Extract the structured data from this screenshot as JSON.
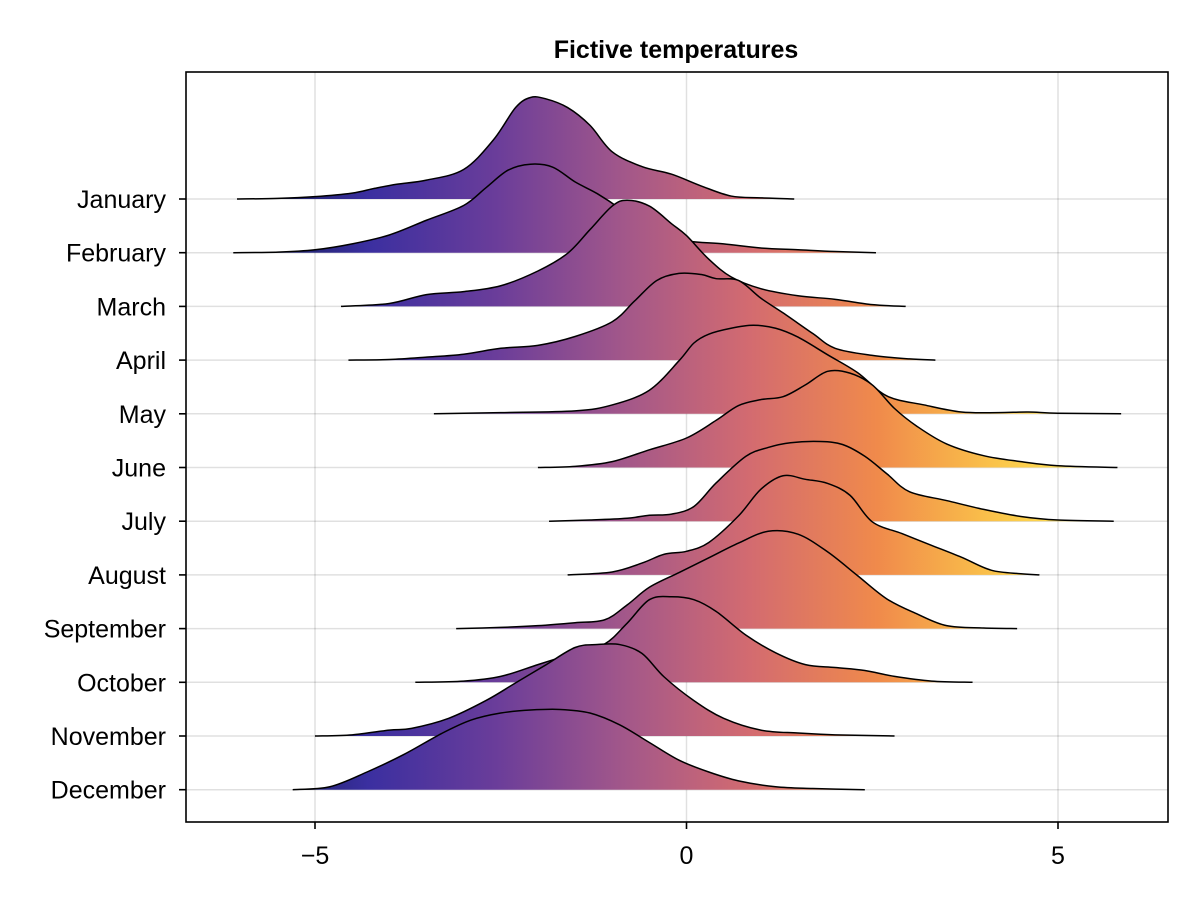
{
  "chart_data": {
    "type": "ridgeline",
    "title": "Fictive temperatures",
    "xlabel": "",
    "ylabel": "",
    "xlim": [
      -6.75,
      6.4
    ],
    "x_ticks": [
      -5,
      0,
      5
    ],
    "x_tick_labels": [
      "−5",
      "0",
      "5"
    ],
    "grid": true,
    "colormap": [
      "#0d1b4c",
      "#3b2fa0",
      "#6a3d9a",
      "#a2578a",
      "#d36b70",
      "#f08a4b",
      "#fbc84a",
      "#fff35a"
    ],
    "colormap_range": [
      -6.0,
      6.0
    ],
    "series": [
      {
        "name": "January",
        "points": [
          [
            -6.05,
            0.0
          ],
          [
            -5.5,
            0.01
          ],
          [
            -5.0,
            0.04
          ],
          [
            -4.5,
            0.1
          ],
          [
            -4.2,
            0.18
          ],
          [
            -3.9,
            0.25
          ],
          [
            -3.5,
            0.32
          ],
          [
            -3.0,
            0.5
          ],
          [
            -2.6,
            1.0
          ],
          [
            -2.3,
            1.55
          ],
          [
            -2.1,
            1.72
          ],
          [
            -1.9,
            1.7
          ],
          [
            -1.6,
            1.55
          ],
          [
            -1.3,
            1.25
          ],
          [
            -1.0,
            0.8
          ],
          [
            -0.6,
            0.55
          ],
          [
            -0.2,
            0.42
          ],
          [
            0.2,
            0.22
          ],
          [
            0.6,
            0.05
          ],
          [
            1.0,
            0.02
          ],
          [
            1.45,
            0.0
          ]
        ]
      },
      {
        "name": "February",
        "points": [
          [
            -6.1,
            0.0
          ],
          [
            -5.5,
            0.01
          ],
          [
            -5.0,
            0.05
          ],
          [
            -4.5,
            0.15
          ],
          [
            -4.0,
            0.3
          ],
          [
            -3.5,
            0.55
          ],
          [
            -3.0,
            0.8
          ],
          [
            -2.7,
            1.1
          ],
          [
            -2.4,
            1.4
          ],
          [
            -2.1,
            1.5
          ],
          [
            -1.8,
            1.45
          ],
          [
            -1.5,
            1.2
          ],
          [
            -1.2,
            1.0
          ],
          [
            -0.9,
            0.75
          ],
          [
            -0.5,
            0.35
          ],
          [
            0.0,
            0.2
          ],
          [
            0.5,
            0.15
          ],
          [
            1.0,
            0.08
          ],
          [
            1.5,
            0.05
          ],
          [
            2.0,
            0.02
          ],
          [
            2.55,
            0.0
          ]
        ]
      },
      {
        "name": "March",
        "points": [
          [
            -4.65,
            0.0
          ],
          [
            -4.0,
            0.05
          ],
          [
            -3.5,
            0.2
          ],
          [
            -3.0,
            0.25
          ],
          [
            -2.5,
            0.35
          ],
          [
            -2.0,
            0.6
          ],
          [
            -1.6,
            0.9
          ],
          [
            -1.3,
            1.3
          ],
          [
            -1.0,
            1.7
          ],
          [
            -0.8,
            1.8
          ],
          [
            -0.5,
            1.7
          ],
          [
            -0.2,
            1.4
          ],
          [
            0.0,
            1.2
          ],
          [
            0.3,
            0.8
          ],
          [
            0.6,
            0.5
          ],
          [
            1.0,
            0.3
          ],
          [
            1.5,
            0.18
          ],
          [
            2.0,
            0.12
          ],
          [
            2.5,
            0.03
          ],
          [
            2.95,
            0.0
          ]
        ]
      },
      {
        "name": "April",
        "points": [
          [
            -4.55,
            0.0
          ],
          [
            -4.0,
            0.01
          ],
          [
            -3.5,
            0.05
          ],
          [
            -3.0,
            0.1
          ],
          [
            -2.5,
            0.2
          ],
          [
            -2.0,
            0.25
          ],
          [
            -1.5,
            0.4
          ],
          [
            -1.0,
            0.65
          ],
          [
            -0.7,
            1.0
          ],
          [
            -0.4,
            1.35
          ],
          [
            -0.1,
            1.47
          ],
          [
            0.2,
            1.45
          ],
          [
            0.4,
            1.38
          ],
          [
            0.7,
            1.35
          ],
          [
            1.0,
            1.05
          ],
          [
            1.3,
            0.8
          ],
          [
            1.7,
            0.45
          ],
          [
            2.0,
            0.2
          ],
          [
            2.5,
            0.08
          ],
          [
            3.0,
            0.02
          ],
          [
            3.35,
            0.0
          ]
        ]
      },
      {
        "name": "May",
        "points": [
          [
            -3.4,
            0.0
          ],
          [
            -2.5,
            0.02
          ],
          [
            -1.5,
            0.05
          ],
          [
            -1.0,
            0.15
          ],
          [
            -0.5,
            0.4
          ],
          [
            -0.1,
            0.9
          ],
          [
            0.1,
            1.2
          ],
          [
            0.3,
            1.35
          ],
          [
            0.6,
            1.45
          ],
          [
            0.9,
            1.5
          ],
          [
            1.2,
            1.45
          ],
          [
            1.5,
            1.3
          ],
          [
            1.9,
            1.0
          ],
          [
            2.3,
            0.7
          ],
          [
            2.7,
            0.3
          ],
          [
            3.2,
            0.15
          ],
          [
            3.7,
            0.03
          ],
          [
            4.2,
            0.02
          ],
          [
            4.6,
            0.03
          ],
          [
            5.0,
            0.01
          ],
          [
            5.85,
            0.0
          ]
        ]
      },
      {
        "name": "June",
        "points": [
          [
            -2.0,
            0.0
          ],
          [
            -1.5,
            0.02
          ],
          [
            -1.0,
            0.1
          ],
          [
            -0.5,
            0.3
          ],
          [
            0.0,
            0.5
          ],
          [
            0.4,
            0.8
          ],
          [
            0.7,
            1.05
          ],
          [
            1.0,
            1.15
          ],
          [
            1.3,
            1.2
          ],
          [
            1.6,
            1.4
          ],
          [
            1.9,
            1.63
          ],
          [
            2.2,
            1.6
          ],
          [
            2.5,
            1.4
          ],
          [
            2.8,
            1.0
          ],
          [
            3.1,
            0.7
          ],
          [
            3.5,
            0.4
          ],
          [
            4.0,
            0.2
          ],
          [
            4.5,
            0.1
          ],
          [
            5.0,
            0.03
          ],
          [
            5.8,
            0.0
          ]
        ]
      },
      {
        "name": "July",
        "points": [
          [
            -1.85,
            0.0
          ],
          [
            -1.3,
            0.02
          ],
          [
            -0.8,
            0.05
          ],
          [
            -0.5,
            0.1
          ],
          [
            -0.2,
            0.12
          ],
          [
            0.1,
            0.25
          ],
          [
            0.4,
            0.65
          ],
          [
            0.8,
            1.1
          ],
          [
            1.1,
            1.25
          ],
          [
            1.4,
            1.33
          ],
          [
            1.8,
            1.35
          ],
          [
            2.1,
            1.3
          ],
          [
            2.4,
            1.1
          ],
          [
            2.7,
            0.8
          ],
          [
            3.0,
            0.5
          ],
          [
            3.5,
            0.35
          ],
          [
            4.0,
            0.2
          ],
          [
            4.5,
            0.08
          ],
          [
            5.0,
            0.02
          ],
          [
            5.75,
            0.0
          ]
        ]
      },
      {
        "name": "August",
        "points": [
          [
            -1.6,
            0.0
          ],
          [
            -1.0,
            0.05
          ],
          [
            -0.6,
            0.2
          ],
          [
            -0.3,
            0.35
          ],
          [
            0.0,
            0.4
          ],
          [
            0.3,
            0.55
          ],
          [
            0.7,
            1.0
          ],
          [
            1.0,
            1.45
          ],
          [
            1.3,
            1.68
          ],
          [
            1.6,
            1.62
          ],
          [
            1.9,
            1.55
          ],
          [
            2.2,
            1.35
          ],
          [
            2.5,
            0.9
          ],
          [
            2.9,
            0.7
          ],
          [
            3.3,
            0.5
          ],
          [
            3.7,
            0.3
          ],
          [
            4.1,
            0.08
          ],
          [
            4.5,
            0.02
          ],
          [
            4.75,
            0.0
          ]
        ]
      },
      {
        "name": "September",
        "points": [
          [
            -3.1,
            0.0
          ],
          [
            -2.5,
            0.02
          ],
          [
            -2.0,
            0.05
          ],
          [
            -1.5,
            0.1
          ],
          [
            -1.1,
            0.15
          ],
          [
            -0.8,
            0.4
          ],
          [
            -0.5,
            0.7
          ],
          [
            -0.1,
            0.95
          ],
          [
            0.3,
            1.2
          ],
          [
            0.7,
            1.45
          ],
          [
            1.1,
            1.65
          ],
          [
            1.5,
            1.6
          ],
          [
            1.9,
            1.3
          ],
          [
            2.3,
            0.9
          ],
          [
            2.7,
            0.5
          ],
          [
            3.1,
            0.25
          ],
          [
            3.5,
            0.05
          ],
          [
            4.0,
            0.01
          ],
          [
            4.45,
            0.0
          ]
        ]
      },
      {
        "name": "October",
        "points": [
          [
            -3.65,
            0.0
          ],
          [
            -3.0,
            0.02
          ],
          [
            -2.5,
            0.1
          ],
          [
            -2.0,
            0.3
          ],
          [
            -1.5,
            0.5
          ],
          [
            -1.1,
            0.65
          ],
          [
            -0.8,
            1.0
          ],
          [
            -0.5,
            1.4
          ],
          [
            -0.2,
            1.45
          ],
          [
            0.1,
            1.4
          ],
          [
            0.4,
            1.2
          ],
          [
            0.8,
            0.8
          ],
          [
            1.2,
            0.5
          ],
          [
            1.6,
            0.3
          ],
          [
            2.0,
            0.25
          ],
          [
            2.4,
            0.2
          ],
          [
            2.8,
            0.1
          ],
          [
            3.3,
            0.02
          ],
          [
            3.85,
            0.0
          ]
        ]
      },
      {
        "name": "November",
        "points": [
          [
            -5.0,
            0.0
          ],
          [
            -4.5,
            0.02
          ],
          [
            -4.0,
            0.1
          ],
          [
            -3.7,
            0.13
          ],
          [
            -3.2,
            0.3
          ],
          [
            -2.7,
            0.6
          ],
          [
            -2.3,
            0.9
          ],
          [
            -1.9,
            1.2
          ],
          [
            -1.5,
            1.5
          ],
          [
            -1.2,
            1.55
          ],
          [
            -0.9,
            1.55
          ],
          [
            -0.6,
            1.4
          ],
          [
            -0.3,
            1.0
          ],
          [
            0.1,
            0.6
          ],
          [
            0.5,
            0.3
          ],
          [
            1.0,
            0.1
          ],
          [
            1.5,
            0.05
          ],
          [
            2.0,
            0.02
          ],
          [
            2.8,
            0.0
          ]
        ]
      },
      {
        "name": "December",
        "points": [
          [
            -5.3,
            0.0
          ],
          [
            -4.8,
            0.05
          ],
          [
            -4.3,
            0.3
          ],
          [
            -3.8,
            0.6
          ],
          [
            -3.3,
            0.95
          ],
          [
            -2.9,
            1.18
          ],
          [
            -2.5,
            1.3
          ],
          [
            -2.1,
            1.35
          ],
          [
            -1.7,
            1.36
          ],
          [
            -1.3,
            1.3
          ],
          [
            -0.9,
            1.1
          ],
          [
            -0.5,
            0.8
          ],
          [
            -0.1,
            0.5
          ],
          [
            0.3,
            0.3
          ],
          [
            0.7,
            0.15
          ],
          [
            1.2,
            0.05
          ],
          [
            1.7,
            0.02
          ],
          [
            2.4,
            0.0
          ]
        ]
      }
    ]
  }
}
